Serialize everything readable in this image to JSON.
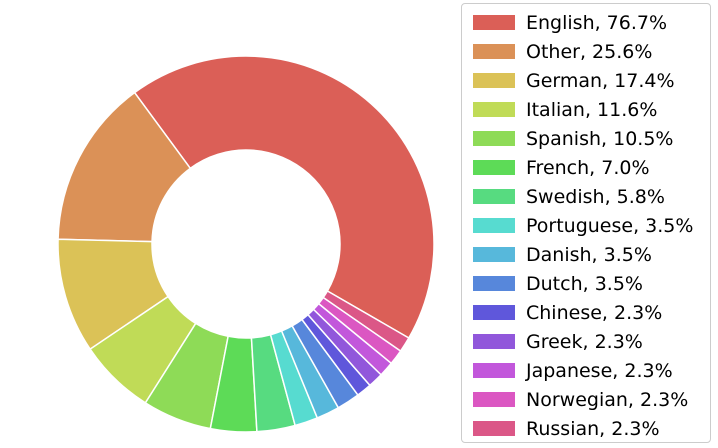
{
  "chart_data": {
    "type": "pie",
    "donut": true,
    "slices": [
      {
        "label": "English, 76.7%",
        "value": 76.7,
        "color": "#db5f57"
      },
      {
        "label": "Other, 25.6%",
        "value": 25.6,
        "color": "#db9157"
      },
      {
        "label": "German, 17.4%",
        "value": 17.4,
        "color": "#dbc257"
      },
      {
        "label": "Italian, 11.6%",
        "value": 11.6,
        "color": "#c0db57"
      },
      {
        "label": "Spanish, 10.5%",
        "value": 10.5,
        "color": "#8edb57"
      },
      {
        "label": "French, 7.0%",
        "value": 7.0,
        "color": "#5ddb57"
      },
      {
        "label": "Swedish, 5.8%",
        "value": 5.8,
        "color": "#57db80"
      },
      {
        "label": "Portuguese, 3.5%",
        "value": 3.5,
        "color": "#57dbd0"
      },
      {
        "label": "Danish, 3.5%",
        "value": 3.5,
        "color": "#57b8db"
      },
      {
        "label": "Dutch, 3.5%",
        "value": 3.5,
        "color": "#5787db"
      },
      {
        "label": "Chinese, 2.3%",
        "value": 2.3,
        "color": "#5f57db"
      },
      {
        "label": "Greek, 2.3%",
        "value": 2.3,
        "color": "#9157db"
      },
      {
        "label": "Japanese, 2.3%",
        "value": 2.3,
        "color": "#c257db"
      },
      {
        "label": "Norwegian, 2.3%",
        "value": 2.3,
        "color": "#db57c2"
      },
      {
        "label": "Russian, 2.3%",
        "value": 2.3,
        "color": "#db5787"
      }
    ],
    "start_angle_deg": -30,
    "direction": "counterclockwise",
    "legend_placement": "right"
  }
}
